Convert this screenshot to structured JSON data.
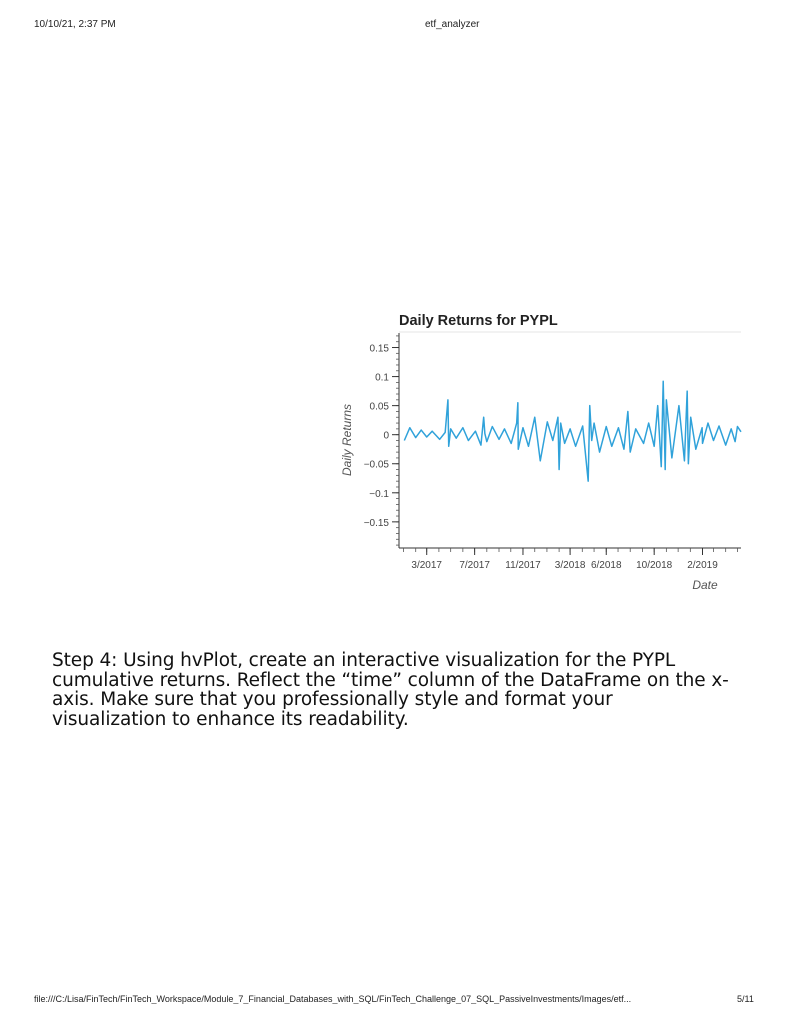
{
  "header": {
    "datetime": "10/10/21, 2:37 PM",
    "doc_title": "etf_analyzer"
  },
  "body": {
    "step_text": "Step 4: Using hvPlot, create an interactive visualization for the PYPL cumulative returns. Reflect the “time” column of the DataFrame on the x-axis. Make sure that you professionally style and format your visualization to enhance its readability."
  },
  "footer": {
    "file_path": "file:///C:/Lisa/FinTech/FinTech_Workspace/Module_7_Financial_Databases_with_SQL/FinTech_Challenge_07_SQL_PassiveInvestments/Images/etf...",
    "page": "5/11"
  },
  "chart_data": {
    "type": "line",
    "title": "Daily Returns for PYPL",
    "xlabel": "Date",
    "ylabel": "Daily Returns",
    "x_range": [
      "2016-12-23",
      "2019-05-10"
    ],
    "ylim": [
      -0.195,
      0.175
    ],
    "x_tick_labels": [
      "3/2017",
      "7/2017",
      "11/2017",
      "3/2018",
      "6/2018",
      "10/2018",
      "2/2019"
    ],
    "x_ticks": [
      "2017-03-01",
      "2017-07-01",
      "2017-11-01",
      "2018-03-01",
      "2018-06-01",
      "2018-10-01",
      "2019-02-01"
    ],
    "y_tick_labels": [
      "0.15",
      "0.1",
      "0.05",
      "0",
      "−0.05",
      "−0.1",
      "−0.15"
    ],
    "y_ticks": [
      0.15,
      0.1,
      0.05,
      0,
      -0.05,
      -0.1,
      -0.15
    ],
    "line_color": "#30a2da",
    "grid": false,
    "series": [
      {
        "x": [
          "2017-01-03",
          "2017-01-17",
          "2017-02-01",
          "2017-02-15",
          "2017-03-01",
          "2017-03-15",
          "2017-04-03",
          "2017-04-17",
          "2017-04-24",
          "2017-04-26",
          "2017-05-01",
          "2017-05-15",
          "2017-06-01",
          "2017-06-15",
          "2017-07-03",
          "2017-07-17",
          "2017-07-24",
          "2017-07-27",
          "2017-08-01",
          "2017-08-15",
          "2017-09-01",
          "2017-09-15",
          "2017-10-02",
          "2017-10-16",
          "2017-10-19",
          "2017-10-20",
          "2017-11-01",
          "2017-11-15",
          "2017-12-01",
          "2017-12-15",
          "2018-01-02",
          "2018-01-16",
          "2018-01-29",
          "2018-02-01",
          "2018-02-05",
          "2018-02-15",
          "2018-03-01",
          "2018-03-15",
          "2018-04-02",
          "2018-04-16",
          "2018-04-20",
          "2018-04-25",
          "2018-05-01",
          "2018-05-15",
          "2018-06-01",
          "2018-06-15",
          "2018-07-02",
          "2018-07-16",
          "2018-07-26",
          "2018-08-01",
          "2018-08-15",
          "2018-09-04",
          "2018-09-17",
          "2018-10-01",
          "2018-10-10",
          "2018-10-19",
          "2018-10-24",
          "2018-10-29",
          "2018-11-01",
          "2018-11-15",
          "2018-12-03",
          "2018-12-17",
          "2018-12-24",
          "2018-12-27",
          "2019-01-02",
          "2019-01-15",
          "2019-01-31",
          "2019-02-01",
          "2019-02-15",
          "2019-03-01",
          "2019-03-15",
          "2019-04-01",
          "2019-04-15",
          "2019-04-25",
          "2019-05-01",
          "2019-05-10"
        ],
        "y": [
          -0.01,
          0.012,
          -0.005,
          0.008,
          -0.004,
          0.006,
          -0.008,
          0.004,
          0.06,
          -0.02,
          0.01,
          -0.006,
          0.012,
          -0.01,
          0.006,
          -0.018,
          0.03,
          0.002,
          -0.012,
          0.014,
          -0.008,
          0.01,
          -0.015,
          0.02,
          0.055,
          -0.025,
          0.012,
          -0.02,
          0.03,
          -0.045,
          0.022,
          -0.01,
          0.03,
          -0.06,
          0.02,
          -0.015,
          0.01,
          -0.02,
          0.015,
          -0.08,
          0.05,
          -0.01,
          0.02,
          -0.03,
          0.014,
          -0.02,
          0.012,
          -0.025,
          0.04,
          -0.03,
          0.01,
          -0.015,
          0.02,
          -0.02,
          0.05,
          -0.055,
          0.092,
          -0.06,
          0.06,
          -0.04,
          0.05,
          -0.045,
          0.075,
          -0.05,
          0.03,
          -0.025,
          0.012,
          -0.015,
          0.02,
          -0.01,
          0.015,
          -0.018,
          0.01,
          -0.012,
          0.014,
          0.005
        ]
      }
    ]
  }
}
